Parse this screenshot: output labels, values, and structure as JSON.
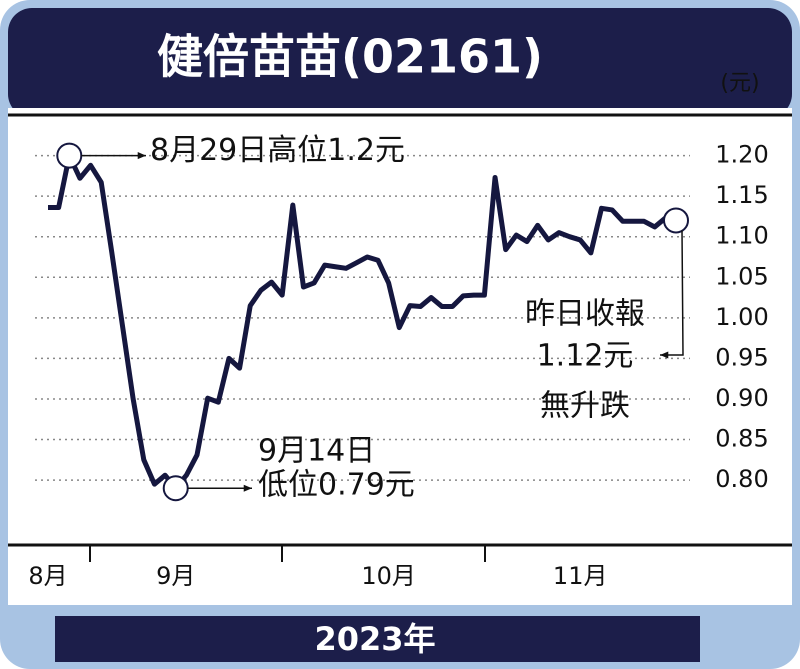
{
  "chart_data": {
    "type": "line",
    "title": "健倍苗苗(02161)",
    "unit": "(元)",
    "xlabel": "2023年",
    "categories": [
      "8月",
      null,
      null,
      null,
      null,
      null,
      null,
      null,
      null,
      null,
      null,
      null,
      "9月",
      null,
      null,
      null,
      null,
      null,
      null,
      null,
      null,
      null,
      null,
      null,
      null,
      null,
      null,
      null,
      null,
      null,
      null,
      null,
      "10月",
      null,
      null,
      null,
      null,
      null,
      null,
      null,
      null,
      null,
      null,
      null,
      null,
      null,
      null,
      null,
      null,
      null,
      "11月",
      null,
      null,
      null,
      null,
      null,
      null,
      null,
      null,
      null
    ],
    "series": [
      {
        "name": "健倍苗苗",
        "color": "#15173f",
        "values": [
          1.136,
          1.136,
          1.2,
          1.172,
          1.188,
          1.167,
          1.08,
          0.99,
          0.9,
          0.825,
          0.795,
          0.806,
          0.79,
          0.806,
          0.831,
          0.901,
          0.896,
          0.95,
          0.938,
          1.015,
          1.034,
          1.044,
          1.028,
          1.139,
          1.038,
          1.043,
          1.065,
          1.063,
          1.061,
          1.068,
          1.075,
          1.071,
          1.043,
          0.988,
          1.015,
          1.014,
          1.025,
          1.014,
          1.014,
          1.027,
          1.028,
          1.028,
          1.173,
          1.084,
          1.102,
          1.094,
          1.114,
          1.096,
          1.105,
          1.1,
          1.096,
          1.08,
          1.135,
          1.133,
          1.119,
          1.119,
          1.119,
          1.112,
          1.123,
          1.12
        ]
      }
    ],
    "ylim": [
      0.72,
      1.25
    ],
    "yticks": [
      {
        "value": 0.8,
        "label": "0.80"
      },
      0.85,
      {
        "value": 0.9,
        "label": "0.90"
      },
      0.95,
      {
        "value": 1.0,
        "label": "1.00"
      },
      1.05,
      {
        "value": 1.1,
        "label": "1.10"
      },
      1.15,
      {
        "value": 1.2,
        "label": "1.20"
      }
    ],
    "grid": true,
    "annotations": [
      {
        "lines": [
          "8月29日高位1.2元"
        ]
      },
      {
        "lines": [
          "9月14日",
          "低位0.79元"
        ]
      },
      {
        "lines": [
          "昨日收報",
          "1.12元",
          "無升跌"
        ]
      }
    ]
  }
}
